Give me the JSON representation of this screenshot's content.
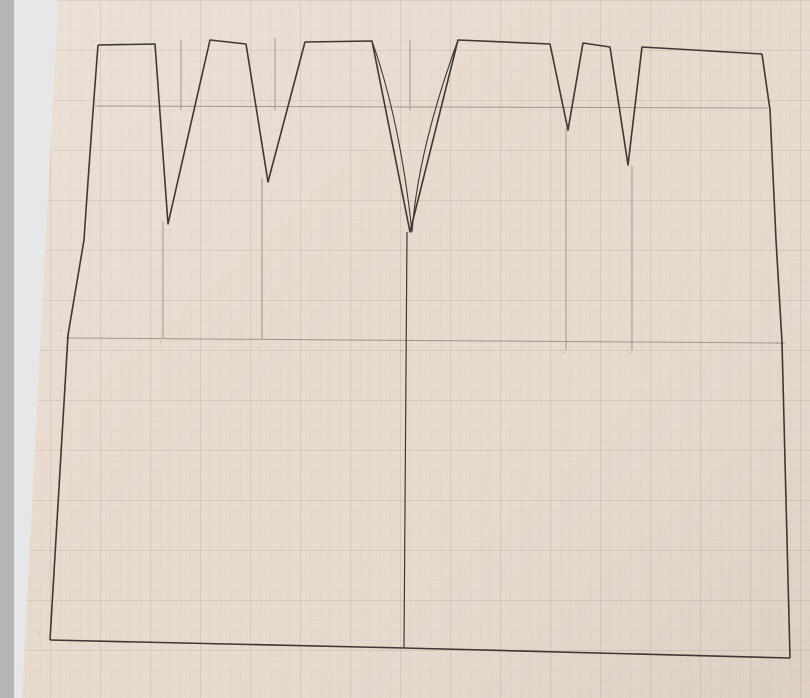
{
  "photo": {
    "subject": "pencil-drafted skirt pattern on graph paper",
    "colors": {
      "paper": "#e9dccf",
      "paper_light": "#f2e8de",
      "grid_minor": "#d3c6ba",
      "grid_major": "#c0b2a6",
      "pencil": "#3f3a35",
      "pencil_light": "#8a8178",
      "backdrop": "#c9c6c4"
    },
    "darts": 5
  }
}
